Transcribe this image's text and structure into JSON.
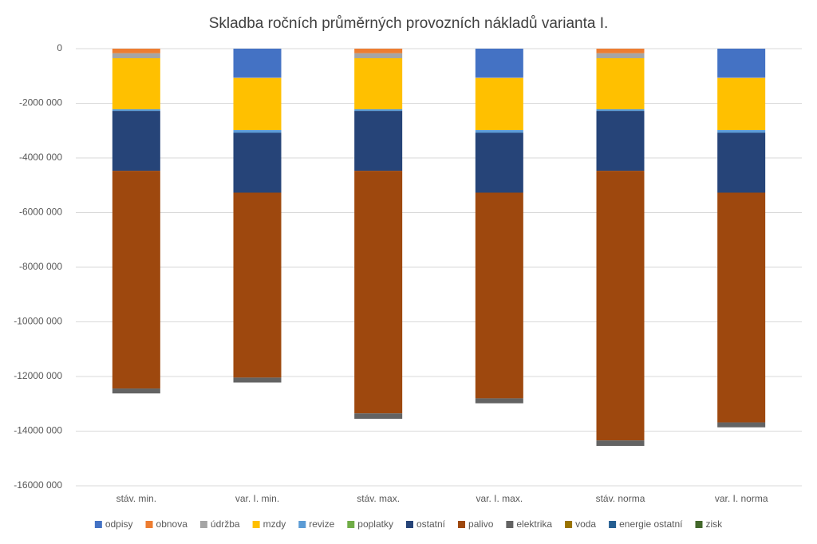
{
  "chart_data": {
    "type": "stacked_bar",
    "title": "Skladba ročních průměrných provozních nákladů varianta I.",
    "categories": [
      "stáv. min.",
      "var. I. min.",
      "stáv. max.",
      "var. I. max.",
      "stáv. norma",
      "var. I. norma"
    ],
    "series": [
      {
        "name": "odpisy",
        "color": "#4472c4",
        "values": [
          0,
          -1050000,
          0,
          -1050000,
          0,
          -1050000
        ]
      },
      {
        "name": "obnova",
        "color": "#ed7d31",
        "values": [
          -170000,
          0,
          -170000,
          0,
          -170000,
          0
        ]
      },
      {
        "name": "údržba",
        "color": "#a5a5a5",
        "values": [
          -180000,
          -30000,
          -180000,
          -30000,
          -180000,
          -30000
        ]
      },
      {
        "name": "mzdy",
        "color": "#ffc000",
        "values": [
          -1870000,
          -1900000,
          -1870000,
          -1900000,
          -1870000,
          -1900000
        ]
      },
      {
        "name": "revize",
        "color": "#5b9bd5",
        "values": [
          -60000,
          -100000,
          -60000,
          -100000,
          -60000,
          -100000
        ]
      },
      {
        "name": "poplatky",
        "color": "#70ad47",
        "values": [
          0,
          0,
          0,
          0,
          0,
          0
        ]
      },
      {
        "name": "ostatní",
        "color": "#264478",
        "values": [
          -2190000,
          -2190000,
          -2190000,
          -2190000,
          -2190000,
          -2190000
        ]
      },
      {
        "name": "palivo",
        "color": "#9e480e",
        "values": [
          -7970000,
          -6770000,
          -8880000,
          -7530000,
          -9870000,
          -8410000
        ]
      },
      {
        "name": "elektrika",
        "color": "#636363",
        "values": [
          -180000,
          -180000,
          -200000,
          -180000,
          -200000,
          -180000
        ]
      },
      {
        "name": "voda",
        "color": "#997300",
        "values": [
          0,
          0,
          0,
          0,
          0,
          0
        ]
      },
      {
        "name": "energie ostatní",
        "color": "#255e91",
        "values": [
          0,
          0,
          0,
          0,
          0,
          0
        ]
      },
      {
        "name": "zisk",
        "color": "#43682b",
        "values": [
          0,
          0,
          0,
          0,
          0,
          0
        ]
      }
    ],
    "ylim": [
      -16000000,
      0
    ],
    "yticks": [
      0,
      {
        "value": -2000000,
        "label": "-2000 000"
      },
      {
        "value": -4000000,
        "label": "-4000 000"
      },
      {
        "value": -6000000,
        "label": "-6000 000"
      },
      {
        "value": -8000000,
        "label": "-8000 000"
      },
      {
        "value": -10000000,
        "label": "-10000 000"
      },
      {
        "value": -12000000,
        "label": "-12000 000"
      },
      {
        "value": -14000000,
        "label": "-14000 000"
      },
      {
        "value": -16000000,
        "label": "-16000 000"
      }
    ],
    "grid": true,
    "legend": "bottom"
  }
}
